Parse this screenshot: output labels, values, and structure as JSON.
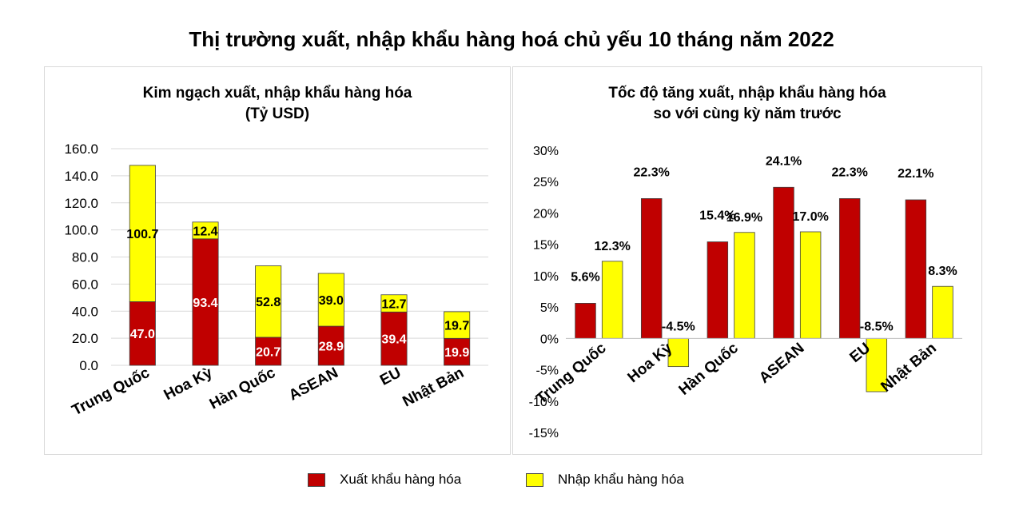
{
  "title": "Thị trường xuất, nhập khẩu hàng hoá chủ yếu 10 tháng năm 2022",
  "legend": {
    "export_label": "Xuất khẩu hàng hóa",
    "import_label": "Nhập khẩu hàng hóa"
  },
  "colors": {
    "export": "#C00000",
    "import": "#FFFF00",
    "gridline": "#d9d9d9"
  },
  "chart_data": [
    {
      "type": "bar",
      "stacked": true,
      "title": "Kim ngạch xuất, nhập khẩu hàng hóa",
      "subtitle": "(Tỷ USD)",
      "categories": [
        "Trung Quốc",
        "Hoa Kỳ",
        "Hàn Quốc",
        "ASEAN",
        "EU",
        "Nhật Bản"
      ],
      "series": [
        {
          "name": "Xuất khẩu hàng hóa",
          "values": [
            47.0,
            93.4,
            20.7,
            28.9,
            39.4,
            19.9
          ],
          "labels": [
            "47.0",
            "93.4",
            "20.7",
            "28.9",
            "39.4",
            "19.9"
          ]
        },
        {
          "name": "Nhập khẩu hàng hóa",
          "values": [
            100.7,
            12.4,
            52.8,
            39.0,
            12.7,
            19.7
          ],
          "labels": [
            "100.7",
            "12.4",
            "52.8",
            "39.0",
            "12.7",
            "19.7"
          ]
        }
      ],
      "ylim": [
        0,
        160
      ],
      "yticks": [
        "0.0",
        "20.0",
        "40.0",
        "60.0",
        "80.0",
        "100.0",
        "120.0",
        "140.0",
        "160.0"
      ],
      "grid": true,
      "legend": "bottom"
    },
    {
      "type": "bar",
      "stacked": false,
      "title": "Tốc độ tăng xuất, nhập khẩu hàng hóa",
      "subtitle": "so với cùng kỳ năm trước",
      "categories": [
        "Trung Quốc",
        "Hoa Kỳ",
        "Hàn Quốc",
        "ASEAN",
        "EU",
        "Nhật Bản"
      ],
      "series": [
        {
          "name": "Xuất khẩu hàng hóa",
          "values": [
            5.6,
            22.3,
            15.4,
            24.1,
            22.3,
            22.1
          ],
          "labels": [
            "5.6%",
            "22.3%",
            "15.4%",
            "24.1%",
            "22.3%",
            "22.1%"
          ]
        },
        {
          "name": "Nhập khẩu hàng hóa",
          "values": [
            12.3,
            -4.5,
            16.9,
            17.0,
            -8.5,
            8.3
          ],
          "labels": [
            "12.3%",
            "-4.5%",
            "16.9%",
            "17.0%",
            "-8.5%",
            "8.3%"
          ]
        }
      ],
      "ylim": [
        -15,
        30
      ],
      "yticks": [
        "-15%",
        "-10%",
        "-5%",
        "0%",
        "5%",
        "10%",
        "15%",
        "20%",
        "25%",
        "30%"
      ],
      "grid": false,
      "legend": "bottom"
    }
  ]
}
